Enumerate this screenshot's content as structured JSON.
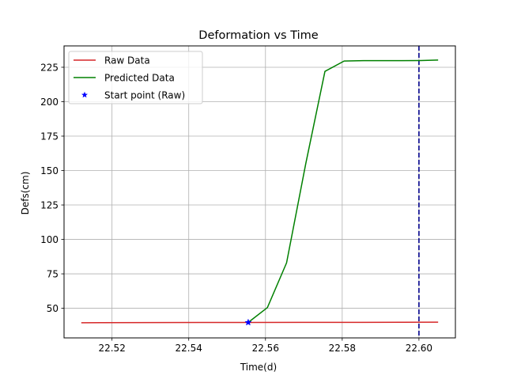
{
  "chart_data": {
    "type": "line",
    "title": "Deformation vs Time",
    "xlabel": "Time(d)",
    "ylabel": "Defs(cm)",
    "xlim": [
      22.5075,
      22.6095
    ],
    "ylim": [
      28.5,
      240.5
    ],
    "xticks": [
      22.52,
      22.54,
      22.56,
      22.58,
      22.6
    ],
    "xtick_labels": [
      "22.52",
      "22.54",
      "22.56",
      "22.58",
      "22.60"
    ],
    "yticks": [
      50,
      75,
      100,
      125,
      150,
      175,
      200,
      225
    ],
    "ytick_labels": [
      "50",
      "75",
      "100",
      "125",
      "150",
      "175",
      "200",
      "225"
    ],
    "grid": true,
    "legend_position": "upper-left",
    "series": [
      {
        "name": "Raw Data",
        "color": "#d62728",
        "style": "line",
        "x": [
          22.512,
          22.53,
          22.545,
          22.5555,
          22.57,
          22.585,
          22.605
        ],
        "y": [
          39.5,
          39.6,
          39.7,
          39.7,
          39.8,
          39.8,
          39.9
        ]
      },
      {
        "name": "Predicted Data",
        "color": "#008000",
        "style": "line",
        "x": [
          22.5555,
          22.5605,
          22.5655,
          22.5705,
          22.5755,
          22.5805,
          22.5855,
          22.5905,
          22.5955,
          22.6005,
          22.605
        ],
        "y": [
          39.7,
          50.5,
          83.0,
          155.0,
          222.0,
          229.5,
          229.8,
          229.8,
          229.8,
          229.9,
          230.2
        ]
      },
      {
        "name": "Start point (Raw)",
        "color": "#0000ff",
        "style": "marker",
        "marker": "star",
        "x": [
          22.5555
        ],
        "y": [
          39.7
        ]
      }
    ],
    "vlines": [
      {
        "x": 22.6,
        "color": "#00008b",
        "style": "dashed"
      }
    ]
  }
}
